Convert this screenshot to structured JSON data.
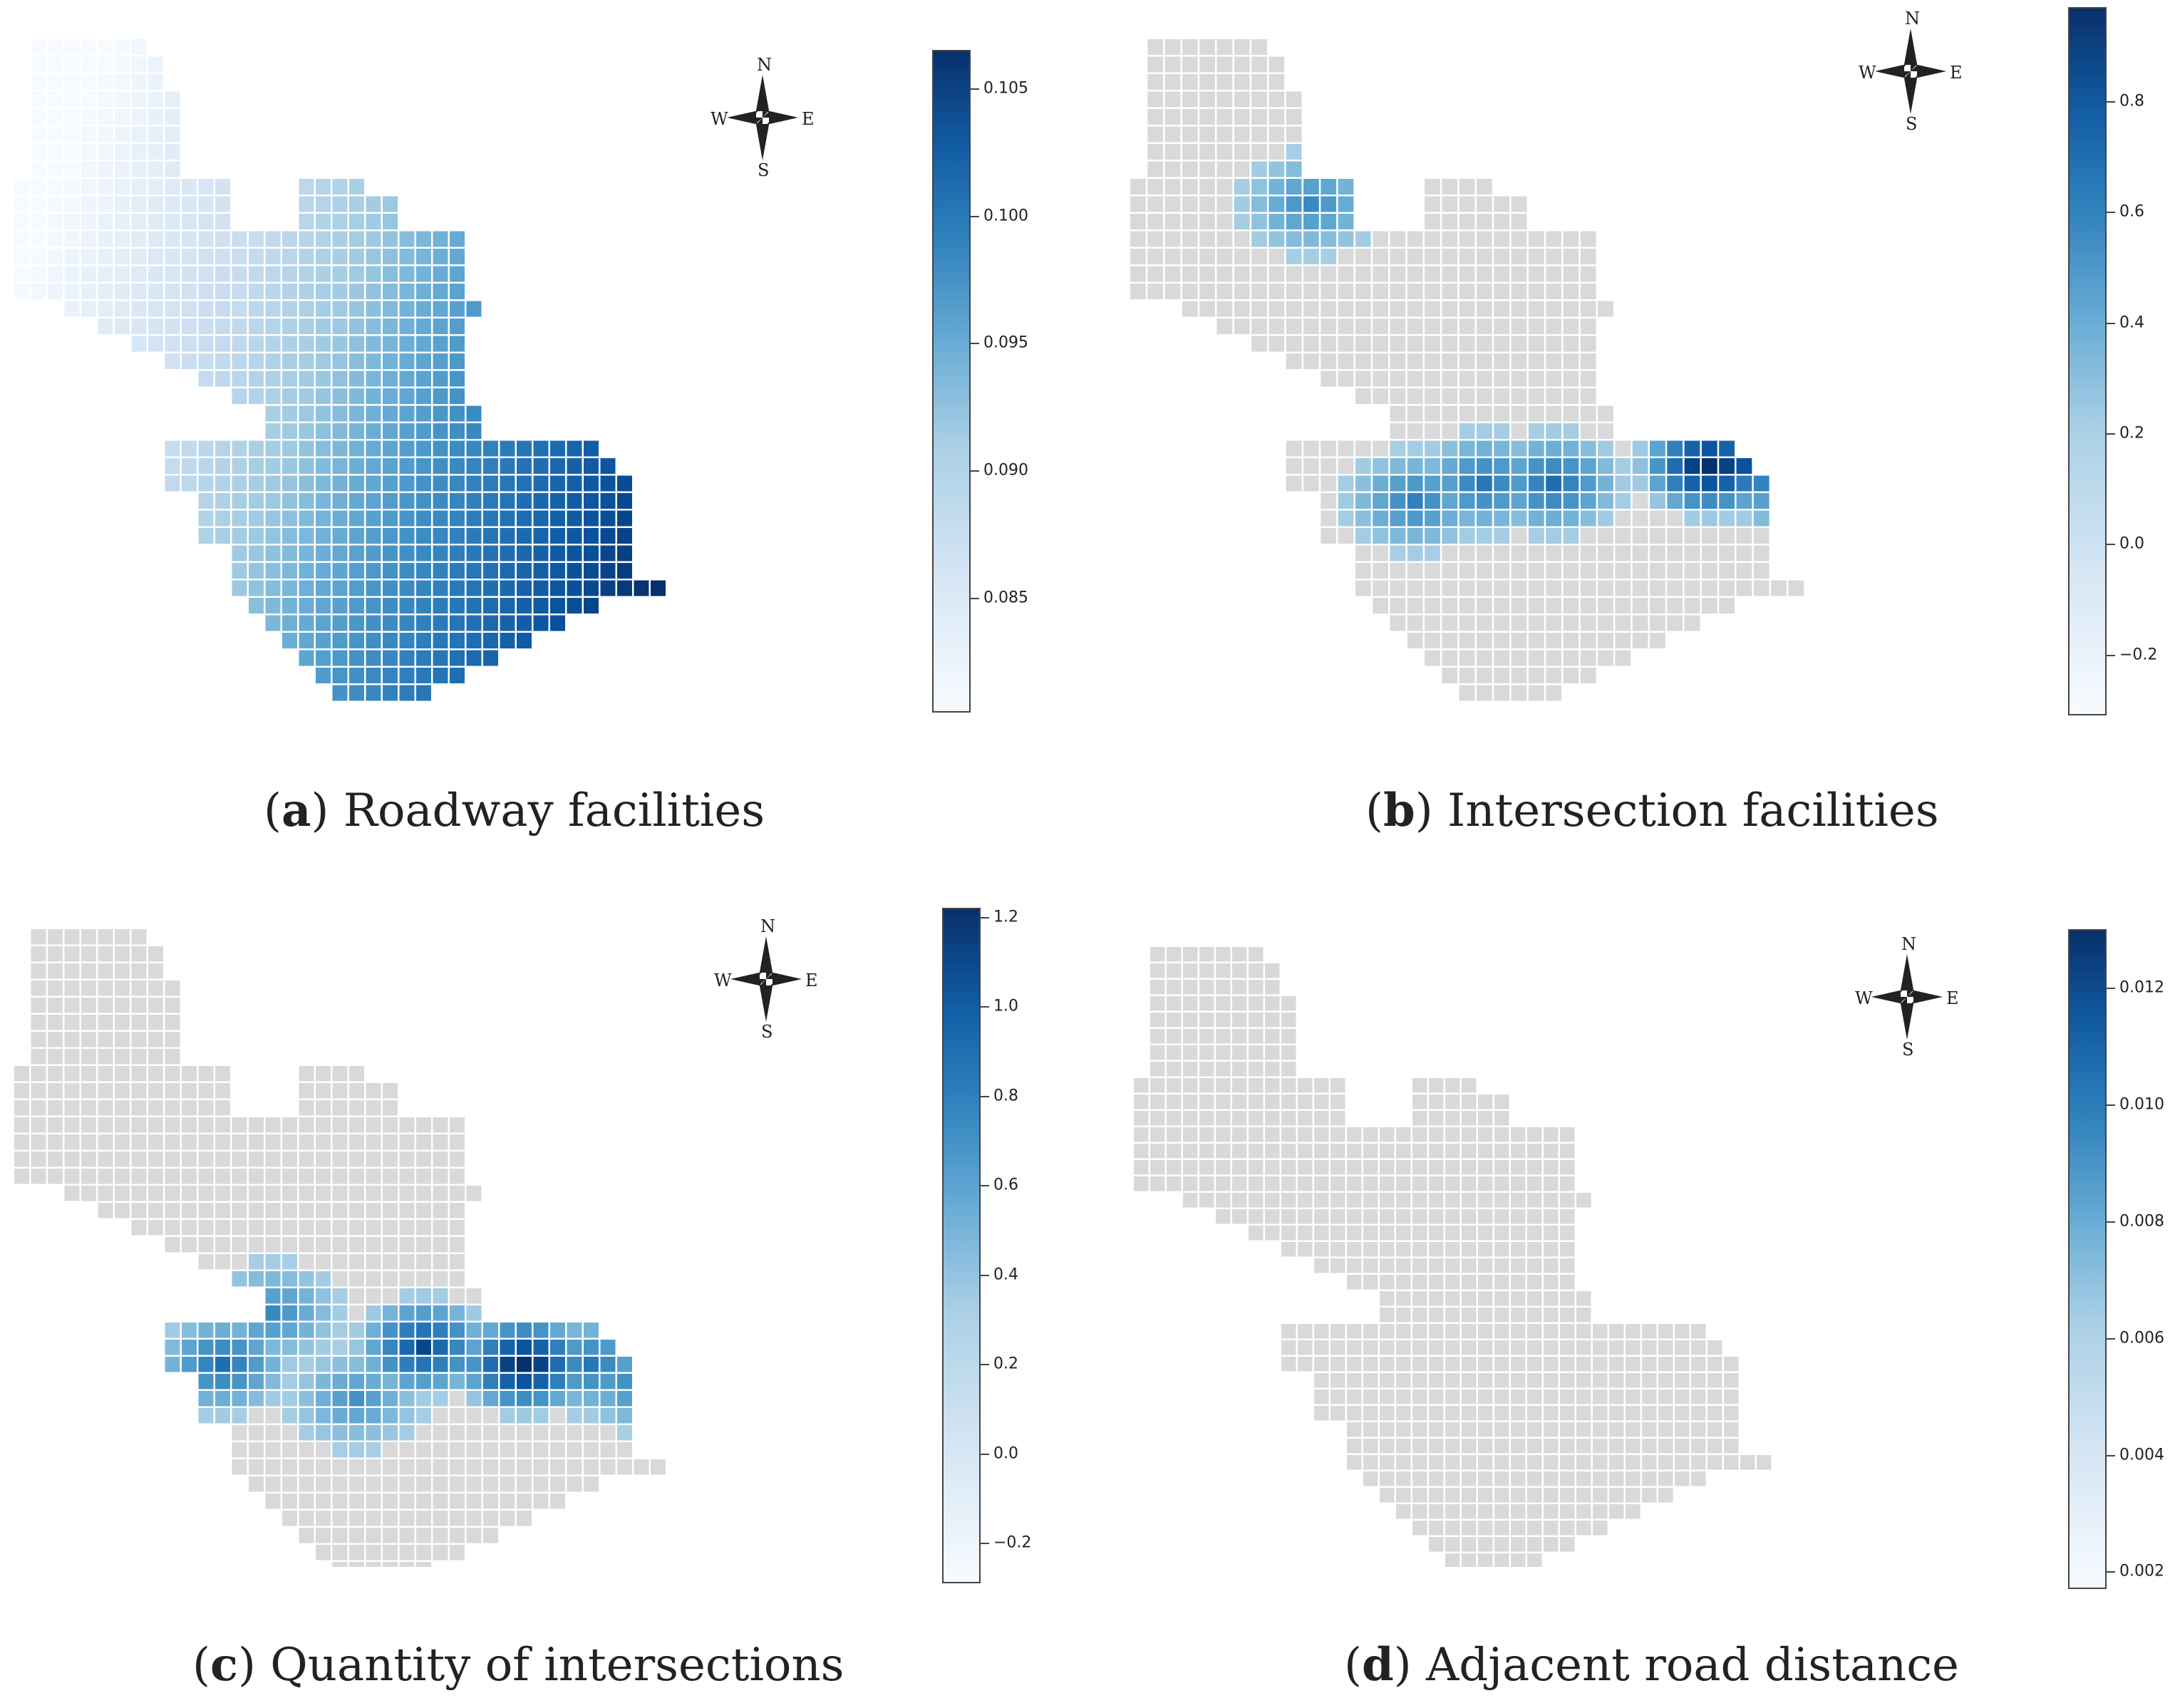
{
  "figure": {
    "panels": [
      {
        "id": "a",
        "letter": "a",
        "caption": "Roadway facilities",
        "compass": {
          "n": "N",
          "s": "S",
          "e": "E",
          "w": "W"
        },
        "colorbar": {
          "ticks": [
            "0.105",
            "0.100",
            "0.095",
            "0.090",
            "0.085"
          ],
          "min": 0.0805,
          "max": 0.1065,
          "tick_values": [
            0.105,
            0.1,
            0.095,
            0.09,
            0.085
          ]
        },
        "pattern": "gradient",
        "icon": "compass-rose-icon"
      },
      {
        "id": "b",
        "letter": "b",
        "caption": "Intersection facilities",
        "compass": {
          "n": "N",
          "s": "S",
          "e": "E",
          "w": "W"
        },
        "colorbar": {
          "ticks": [
            "0.8",
            "0.6",
            "0.4",
            "0.2",
            "0.0",
            "−0.2"
          ],
          "min": -0.31,
          "max": 0.97,
          "tick_values": [
            0.8,
            0.6,
            0.4,
            0.2,
            0.0,
            -0.2
          ]
        },
        "pattern": "hotspots-intersection",
        "icon": "compass-rose-icon"
      },
      {
        "id": "c",
        "letter": "c",
        "caption": "Quantity of intersections",
        "compass": {
          "n": "N",
          "s": "S",
          "e": "E",
          "w": "W"
        },
        "colorbar": {
          "ticks": [
            "1.2",
            "1.0",
            "0.8",
            "0.6",
            "0.4",
            "0.2",
            "0.0",
            "−0.2"
          ],
          "min": -0.29,
          "max": 1.22,
          "tick_values": [
            1.2,
            1.0,
            0.8,
            0.6,
            0.4,
            0.2,
            0.0,
            -0.2
          ]
        },
        "pattern": "hotspots-quantity",
        "icon": "compass-rose-icon"
      },
      {
        "id": "d",
        "letter": "d",
        "caption": "Adjacent road distance",
        "compass": {
          "n": "N",
          "s": "S",
          "e": "E",
          "w": "W"
        },
        "colorbar": {
          "ticks": [
            "0.012",
            "0.010",
            "0.008",
            "0.006",
            "0.004",
            "0.002"
          ],
          "min": 0.0017,
          "max": 0.013,
          "tick_values": [
            0.012,
            0.01,
            0.008,
            0.006,
            0.004,
            0.002
          ]
        },
        "pattern": "uniform-grey",
        "icon": "compass-rose-icon"
      }
    ],
    "colors": {
      "no_data_cell": "#d9d9d9",
      "grid_line": "#ffffff",
      "colormap_low": "#f7fbff",
      "colormap_mid": "#4eb3d3",
      "colormap_high": "#08306b"
    }
  }
}
